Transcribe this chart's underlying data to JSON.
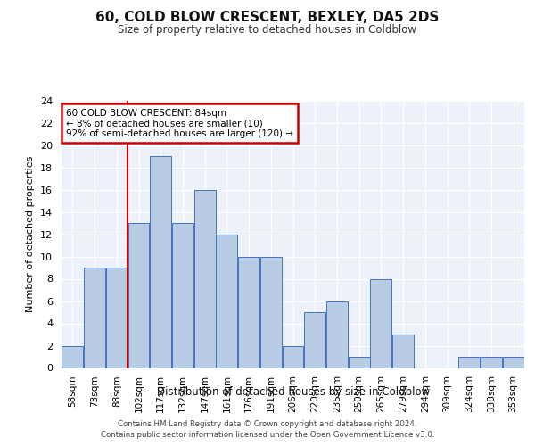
{
  "title1": "60, COLD BLOW CRESCENT, BEXLEY, DA5 2DS",
  "title2": "Size of property relative to detached houses in Coldblow",
  "xlabel": "Distribution of detached houses by size in Coldblow",
  "ylabel": "Number of detached properties",
  "categories": [
    "58sqm",
    "73sqm",
    "88sqm",
    "102sqm",
    "117sqm",
    "132sqm",
    "147sqm",
    "161sqm",
    "176sqm",
    "191sqm",
    "206sqm",
    "220sqm",
    "235sqm",
    "250sqm",
    "265sqm",
    "279sqm",
    "294sqm",
    "309sqm",
    "324sqm",
    "338sqm",
    "353sqm"
  ],
  "values": [
    2,
    9,
    9,
    13,
    19,
    13,
    16,
    12,
    10,
    10,
    2,
    5,
    6,
    1,
    8,
    3,
    0,
    0,
    1,
    1,
    1
  ],
  "bar_color": "#b8cce4",
  "bar_edge_color": "#4472c4",
  "red_line_index": 2,
  "annotation_line1": "60 COLD BLOW CRESCENT: 84sqm",
  "annotation_line2": "← 8% of detached houses are smaller (10)",
  "annotation_line3": "92% of semi-detached houses are larger (120) →",
  "annotation_box_color": "#ffffff",
  "annotation_box_edge": "#cc0000",
  "ylim": [
    0,
    24
  ],
  "yticks": [
    0,
    2,
    4,
    6,
    8,
    10,
    12,
    14,
    16,
    18,
    20,
    22,
    24
  ],
  "footer1": "Contains HM Land Registry data © Crown copyright and database right 2024.",
  "footer2": "Contains public sector information licensed under the Open Government Licence v3.0.",
  "plot_bg_color": "#edf1f9"
}
